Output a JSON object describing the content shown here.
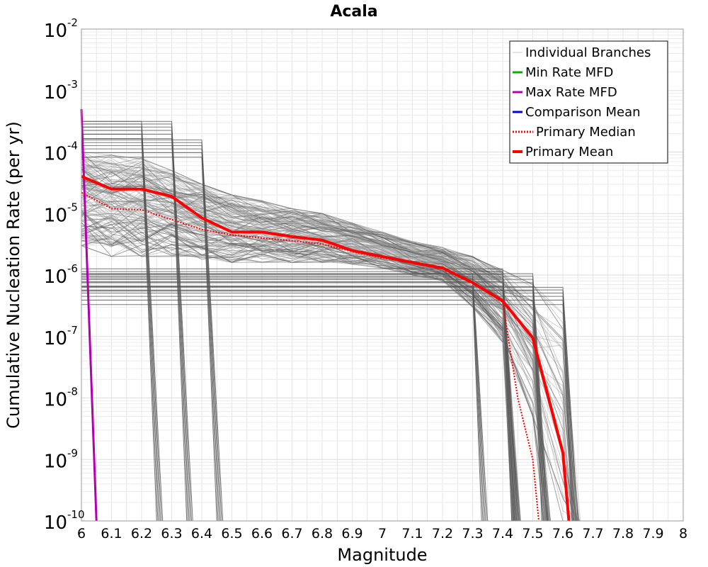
{
  "chart_data": {
    "type": "line",
    "title": "Acala",
    "xlabel": "Magnitude",
    "ylabel": "Cumulative Nucleation Rate (per yr)",
    "xlim": [
      6,
      8
    ],
    "ylim": [
      1e-10,
      0.01
    ],
    "y_scale": "log",
    "grid": true,
    "legend_position": "top-right",
    "x_ticks": [
      "6",
      "6.1",
      "6.2",
      "6.3",
      "6.4",
      "6.5",
      "6.6",
      "6.7",
      "6.8",
      "6.9",
      "7",
      "7.1",
      "7.2",
      "7.3",
      "7.4",
      "7.5",
      "7.6",
      "7.7",
      "7.8",
      "7.9",
      "8"
    ],
    "y_ticks": [
      {
        "base": "10",
        "exp": "-2",
        "value": 0.01
      },
      {
        "base": "10",
        "exp": "-3",
        "value": 0.001
      },
      {
        "base": "10",
        "exp": "-4",
        "value": 0.0001
      },
      {
        "base": "10",
        "exp": "-5",
        "value": 1e-05
      },
      {
        "base": "10",
        "exp": "-6",
        "value": 1e-06
      },
      {
        "base": "10",
        "exp": "-7",
        "value": 1e-07
      },
      {
        "base": "10",
        "exp": "-8",
        "value": 1e-08
      },
      {
        "base": "10",
        "exp": "-9",
        "value": 1e-09
      },
      {
        "base": "10",
        "exp": "-10",
        "value": 1e-10
      }
    ],
    "legend": [
      {
        "label": "Individual Branches",
        "color": "#c8c8c8",
        "style": "solid"
      },
      {
        "label": "Min Rate MFD",
        "color": "#00b000",
        "style": "solid"
      },
      {
        "label": "Max Rate MFD",
        "color": "#b000b0",
        "style": "solid"
      },
      {
        "label": "Comparison Mean",
        "color": "#0000e0",
        "style": "solid"
      },
      {
        "label": "Primary Median",
        "color": "#ff0000",
        "style": "dotted"
      },
      {
        "label": "Primary Mean",
        "color": "#ff0000",
        "style": "solid"
      }
    ],
    "series": [
      {
        "name": "Primary Mean",
        "color": "#ff0000",
        "style": "solid",
        "x": [
          6.0,
          6.1,
          6.2,
          6.3,
          6.4,
          6.5,
          6.6,
          6.7,
          6.8,
          6.9,
          7.0,
          7.1,
          7.2,
          7.3,
          7.4,
          7.5,
          7.6,
          7.62
        ],
        "y": [
          4e-05,
          2.5e-05,
          2.5e-05,
          1.9e-05,
          8.5e-06,
          5e-06,
          5e-06,
          4.2e-06,
          3.7e-06,
          2.5e-06,
          2e-06,
          1.6e-06,
          1.3e-06,
          7.5e-07,
          3.8e-07,
          9.5e-08,
          1.3e-09,
          1e-10
        ]
      },
      {
        "name": "Primary Median",
        "color": "#ff0000",
        "style": "dotted",
        "x": [
          6.0,
          6.1,
          6.2,
          6.3,
          6.4,
          6.5,
          6.6,
          6.7,
          6.8,
          6.9,
          7.0,
          7.1,
          7.2,
          7.3,
          7.4,
          7.45,
          7.5,
          7.52
        ],
        "y": [
          2.2e-05,
          1.2e-05,
          1.15e-05,
          8e-06,
          5.5e-06,
          4.5e-06,
          4e-06,
          3.6e-06,
          3.2e-06,
          2.4e-06,
          1.9e-06,
          1.6e-06,
          1.3e-06,
          7.5e-07,
          3.6e-07,
          1e-08,
          1e-09,
          1e-10
        ]
      },
      {
        "name": "Max Rate MFD",
        "color": "#b000b0",
        "style": "solid",
        "x": [
          6.0,
          6.05
        ],
        "y": [
          0.0005,
          1e-10
        ]
      }
    ],
    "branch_envelope": {
      "color": "#555555",
      "x": [
        6.0,
        6.1,
        6.2,
        6.3,
        6.4,
        6.5,
        6.6,
        6.7,
        6.8,
        6.9,
        7.0,
        7.1,
        7.2,
        7.3,
        7.4,
        7.5,
        7.6
      ],
      "y_low": [
        3e-06,
        2e-06,
        2e-06,
        2e-06,
        1.8e-06,
        1.6e-06,
        1.6e-06,
        1.6e-06,
        1.6e-06,
        1.5e-06,
        1.3e-06,
        1e-06,
        8e-07,
        3e-07,
        8e-08,
        5e-09,
        1e-10
      ],
      "y_high": [
        0.0001,
        9e-05,
        8e-05,
        5e-05,
        3e-05,
        2e-05,
        1.6e-05,
        1.2e-05,
        1e-05,
        7e-06,
        5e-06,
        3.5e-06,
        2.8e-06,
        2e-06,
        1.2e-06,
        7e-07,
        4e-07
      ],
      "drops": [
        {
          "x_from": 6.2,
          "x_to": 6.25,
          "y": 0.0003
        },
        {
          "x_from": 6.3,
          "x_to": 6.35,
          "y": 0.0003
        },
        {
          "x_from": 6.4,
          "x_to": 6.45,
          "y": 0.00015
        },
        {
          "x_from": 7.3,
          "x_to": 7.33,
          "y": 1e-06
        },
        {
          "x_from": 7.4,
          "x_to": 7.43,
          "y": 1.2e-06
        },
        {
          "x_from": 7.5,
          "x_to": 7.53,
          "y": 1e-06
        },
        {
          "x_from": 7.6,
          "x_to": 7.63,
          "y": 6e-07
        }
      ]
    }
  }
}
